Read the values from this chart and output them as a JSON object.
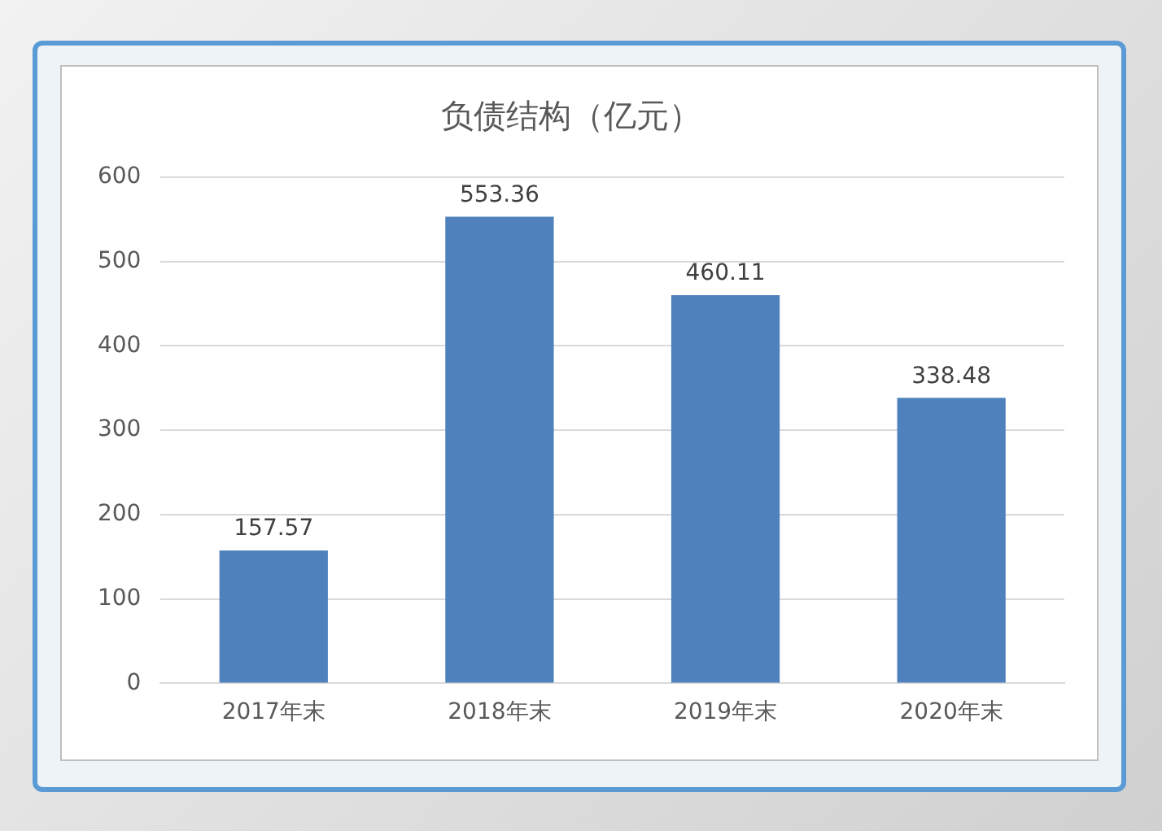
{
  "chart_data": {
    "type": "bar",
    "title": "负债结构（亿元）",
    "categories": [
      "2017年末",
      "2018年末",
      "2019年末",
      "2020年末"
    ],
    "values": [
      157.57,
      553.36,
      460.11,
      338.48
    ],
    "color": "#4f81bd",
    "ylim": [
      0,
      600
    ],
    "yticks": [
      0,
      100,
      200,
      300,
      400,
      500,
      600
    ],
    "grid": "y",
    "data_labels": true,
    "legend": false
  }
}
